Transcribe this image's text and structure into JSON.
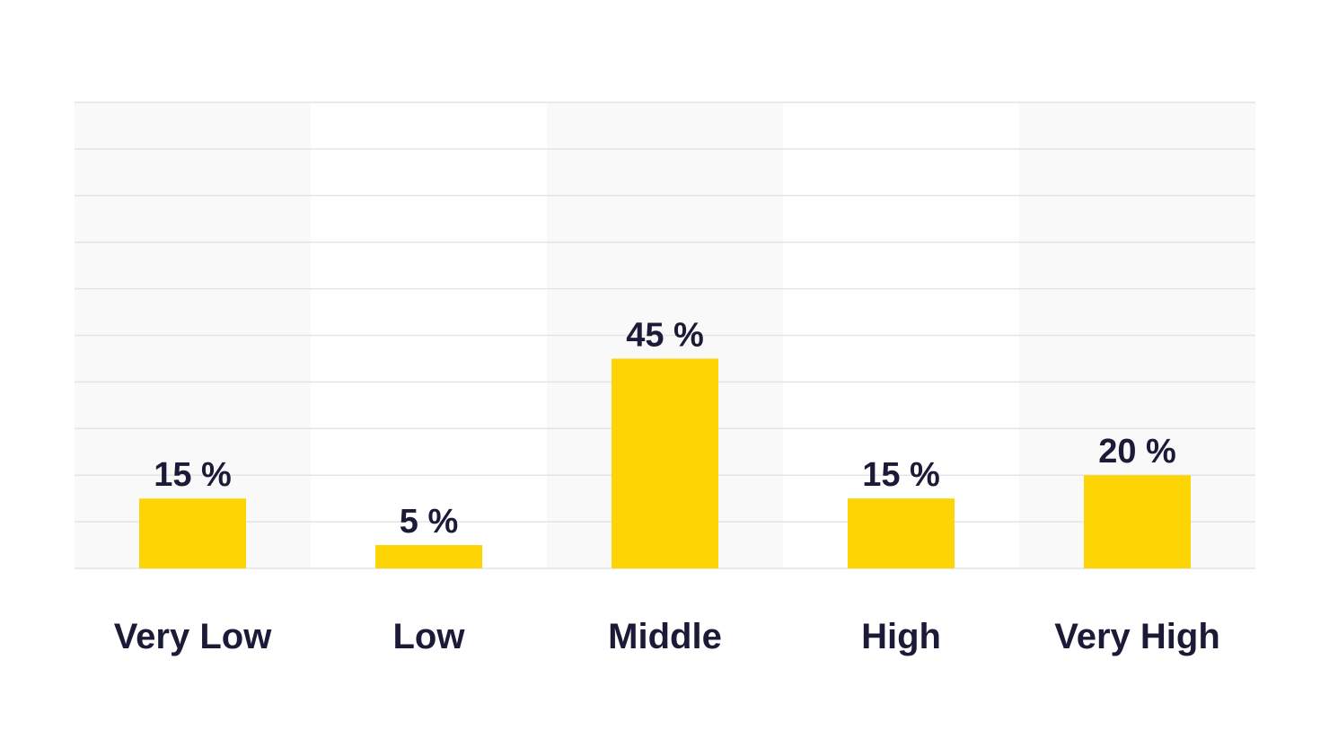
{
  "chart_data": {
    "type": "bar",
    "title": "",
    "xlabel": "",
    "ylabel": "",
    "categories": [
      "Very Low",
      "Low",
      "Middle",
      "High",
      "Very High"
    ],
    "values": [
      15,
      5,
      45,
      15,
      20
    ],
    "value_labels": [
      "15 %",
      "5 %",
      "45 %",
      "15 %",
      "20 %"
    ],
    "unit": "%",
    "ylim": [
      0,
      100
    ],
    "grid": true,
    "legend": "none",
    "colors": {
      "bar": "#fdd504",
      "text": "#1b1a37",
      "gridline": "#e4e4e4",
      "band": "#f9f9f9",
      "background": "#ffffff"
    }
  }
}
